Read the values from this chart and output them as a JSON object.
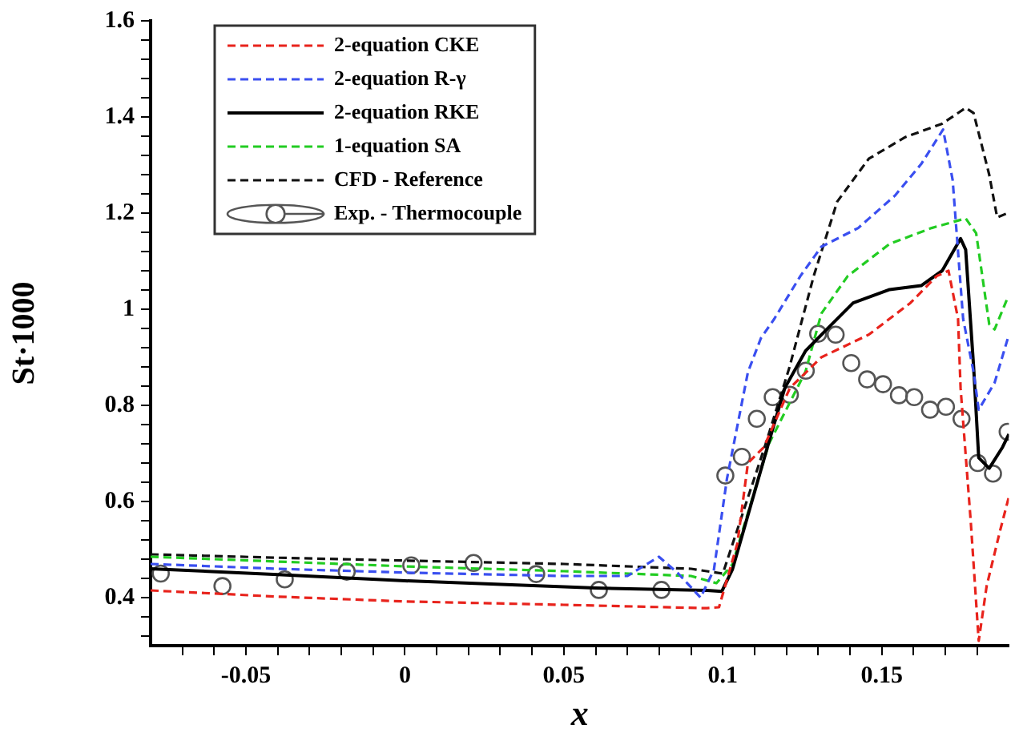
{
  "chart_data": {
    "type": "line",
    "xlabel": "x",
    "ylabel": "St·1000",
    "xlim": [
      -0.08,
      0.19
    ],
    "ylim": [
      0.3,
      1.6
    ],
    "xticks": [
      {
        "value": -0.07,
        "label": null
      },
      {
        "value": -0.06,
        "label": null
      },
      -0.05,
      {
        "value": -0.04,
        "label": null
      },
      {
        "value": -0.03,
        "label": null
      },
      {
        "value": -0.02,
        "label": null
      },
      {
        "value": -0.01,
        "label": null
      },
      0,
      {
        "value": 0.01,
        "label": null
      },
      {
        "value": 0.02,
        "label": null
      },
      {
        "value": 0.03,
        "label": null
      },
      {
        "value": 0.04,
        "label": null
      },
      0.05,
      {
        "value": 0.06,
        "label": null
      },
      {
        "value": 0.07,
        "label": null
      },
      {
        "value": 0.08,
        "label": null
      },
      {
        "value": 0.09,
        "label": null
      },
      0.1,
      {
        "value": 0.11,
        "label": null
      },
      {
        "value": 0.12,
        "label": null
      },
      {
        "value": 0.13,
        "label": null
      },
      {
        "value": 0.14,
        "label": null
      },
      0.15,
      {
        "value": 0.16,
        "label": null
      },
      {
        "value": 0.17,
        "label": null
      },
      {
        "value": 0.18,
        "label": null
      }
    ],
    "yticks": [
      {
        "value": 0.32,
        "label": null
      },
      {
        "value": 0.36,
        "label": null
      },
      {
        "value": 0.4,
        "label": "0.4"
      },
      {
        "value": 0.44,
        "label": null
      },
      {
        "value": 0.48,
        "label": null
      },
      {
        "value": 0.52,
        "label": null
      },
      {
        "value": 0.56,
        "label": null
      },
      {
        "value": 0.6,
        "label": "0.6"
      },
      {
        "value": 0.64,
        "label": null
      },
      {
        "value": 0.68,
        "label": null
      },
      {
        "value": 0.72,
        "label": null
      },
      {
        "value": 0.76,
        "label": null
      },
      {
        "value": 0.8,
        "label": "0.8"
      },
      {
        "value": 0.84,
        "label": null
      },
      {
        "value": 0.88,
        "label": null
      },
      {
        "value": 0.92,
        "label": null
      },
      {
        "value": 0.96,
        "label": null
      },
      1,
      {
        "value": 1.04,
        "label": null
      },
      {
        "value": 1.08,
        "label": null
      },
      {
        "value": 1.12,
        "label": null
      },
      {
        "value": 1.16,
        "label": null
      },
      {
        "value": 1.2,
        "label": "1.2"
      },
      {
        "value": 1.24,
        "label": null
      },
      {
        "value": 1.28,
        "label": null
      },
      {
        "value": 1.32,
        "label": null
      },
      {
        "value": 1.36,
        "label": null
      },
      {
        "value": 1.4,
        "label": "1.4"
      },
      {
        "value": 1.44,
        "label": null
      },
      {
        "value": 1.48,
        "label": null
      },
      {
        "value": 1.52,
        "label": null
      },
      {
        "value": 1.56,
        "label": null
      },
      {
        "value": 1.6,
        "label": "1.6"
      }
    ],
    "grid": false,
    "legend": "top left",
    "marker": "none",
    "series": [
      {
        "name": "2-equation CKE",
        "color": "#e8231c",
        "line_style": "dashed",
        "x": [
          -0.08,
          -0.04,
          0,
          0.05,
          0.095,
          0.0988,
          0.1046,
          0.1079,
          0.1129,
          0.1211,
          0.131,
          0.1459,
          0.159,
          0.1673,
          0.171,
          0.174,
          0.1748,
          0.178,
          0.1805,
          0.183,
          0.1871,
          0.19
        ],
        "values": [
          0.415,
          0.402,
          0.392,
          0.385,
          0.378,
          0.38,
          0.513,
          0.68,
          0.713,
          0.836,
          0.9,
          0.947,
          1.013,
          1.069,
          1.08,
          0.98,
          0.836,
          0.558,
          0.31,
          0.424,
          0.536,
          0.61
        ]
      },
      {
        "name": "2-equation R-γ",
        "color": "#3a4ff0",
        "line_style": "dashed",
        "x": [
          -0.08,
          -0.04,
          0,
          0.05,
          0.07,
          0.0799,
          0.086,
          0.093,
          0.0972,
          0.1013,
          0.1079,
          0.112,
          0.1162,
          0.1244,
          0.131,
          0.1426,
          0.1541,
          0.1624,
          0.1693,
          0.1723,
          0.1756,
          0.1789,
          0.1805,
          0.1855,
          0.19
        ],
        "values": [
          0.47,
          0.46,
          0.452,
          0.445,
          0.445,
          0.485,
          0.45,
          0.4,
          0.458,
          0.647,
          0.869,
          0.94,
          0.98,
          1.069,
          1.13,
          1.169,
          1.236,
          1.302,
          1.374,
          1.269,
          0.98,
          0.869,
          0.791,
          0.847,
          0.947
        ]
      },
      {
        "name": "2-equation RKE",
        "color": "#000000",
        "line_style": "solid",
        "x": [
          -0.08,
          -0.04,
          0,
          0.06,
          0.095,
          0.0997,
          0.103,
          0.1145,
          0.1195,
          0.126,
          0.1327,
          0.141,
          0.1525,
          0.1624,
          0.169,
          0.1748,
          0.1764,
          0.1789,
          0.1805,
          0.1838,
          0.188,
          0.19
        ],
        "values": [
          0.46,
          0.448,
          0.435,
          0.42,
          0.415,
          0.413,
          0.458,
          0.724,
          0.836,
          0.913,
          0.958,
          1.013,
          1.041,
          1.049,
          1.08,
          1.147,
          1.124,
          0.88,
          0.691,
          0.669,
          0.713,
          0.74
        ]
      },
      {
        "name": "1-equation SA",
        "color": "#22cc22",
        "line_style": "dashed",
        "x": [
          -0.08,
          -0.04,
          0,
          0.05,
          0.09,
          0.098,
          0.103,
          0.1145,
          0.126,
          0.131,
          0.1393,
          0.1525,
          0.1657,
          0.1764,
          0.1797,
          0.1838,
          0.1855,
          0.1896
        ],
        "values": [
          0.485,
          0.475,
          0.465,
          0.455,
          0.445,
          0.43,
          0.469,
          0.72,
          0.87,
          0.991,
          1.069,
          1.136,
          1.169,
          1.189,
          1.158,
          0.969,
          0.958,
          1.024
        ]
      },
      {
        "name": "CFD - Reference",
        "color": "#111111",
        "line_style": "dashed",
        "x": [
          -0.08,
          -0.04,
          0,
          0.05,
          0.09,
          0.1,
          0.1137,
          0.121,
          0.1286,
          0.136,
          0.1459,
          0.1574,
          0.169,
          0.1764,
          0.1789,
          0.1838,
          0.1863,
          0.1896
        ],
        "values": [
          0.49,
          0.483,
          0.477,
          0.47,
          0.46,
          0.45,
          0.724,
          0.88,
          1.069,
          1.224,
          1.313,
          1.358,
          1.386,
          1.419,
          1.408,
          1.28,
          1.191,
          1.2
        ]
      },
      {
        "name": "Exp. - Thermocouple",
        "type": "scatter",
        "marker": "circle",
        "color": "#555555",
        "x": [
          -0.0768,
          -0.0574,
          -0.0378,
          -0.0183,
          0.002,
          0.0216,
          0.0413,
          0.061,
          0.0807,
          0.1008,
          0.106,
          0.1107,
          0.1157,
          0.1211,
          0.1261,
          0.13,
          0.1355,
          0.1404,
          0.1454,
          0.1504,
          0.1554,
          0.1602,
          0.1652,
          0.1702,
          0.1751,
          0.1802,
          0.185,
          0.1896
        ],
        "values": [
          0.45,
          0.424,
          0.438,
          0.454,
          0.467,
          0.472,
          0.449,
          0.416,
          0.416,
          0.654,
          0.693,
          0.772,
          0.817,
          0.822,
          0.872,
          0.949,
          0.947,
          0.888,
          0.854,
          0.844,
          0.821,
          0.817,
          0.791,
          0.797,
          0.772,
          0.68,
          0.658,
          0.745
        ]
      }
    ]
  }
}
